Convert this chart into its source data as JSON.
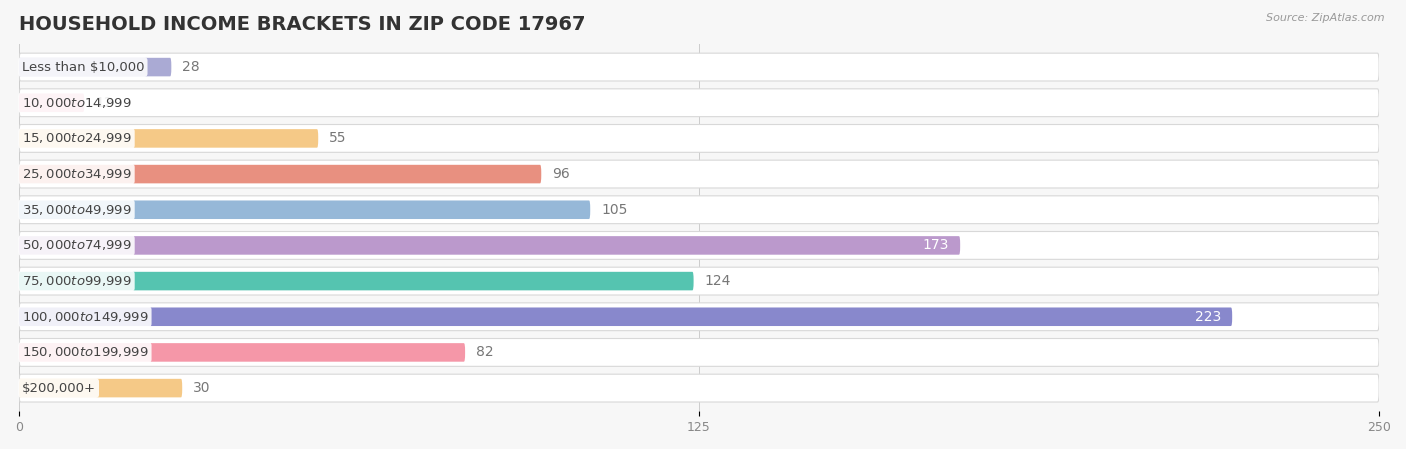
{
  "title": "HOUSEHOLD INCOME BRACKETS IN ZIP CODE 17967",
  "source": "Source: ZipAtlas.com",
  "categories": [
    "Less than $10,000",
    "$10,000 to $14,999",
    "$15,000 to $24,999",
    "$25,000 to $34,999",
    "$35,000 to $49,999",
    "$50,000 to $74,999",
    "$75,000 to $99,999",
    "$100,000 to $149,999",
    "$150,000 to $199,999",
    "$200,000+"
  ],
  "values": [
    28,
    12,
    55,
    96,
    105,
    173,
    124,
    223,
    82,
    30
  ],
  "colors": [
    "#aaaad4",
    "#f2a0b8",
    "#f5c987",
    "#e89080",
    "#96b8d8",
    "#bb99cc",
    "#55c4b0",
    "#8888cc",
    "#f597a8",
    "#f5c987"
  ],
  "row_bg_color": "#ebebeb",
  "row_bg_border": "#d8d8d8",
  "xlim": [
    0,
    250
  ],
  "xticks": [
    0,
    125,
    250
  ],
  "background_color": "#f7f7f7",
  "label_color_inside": "#ffffff",
  "label_color_outside": "#777777",
  "title_fontsize": 14,
  "label_fontsize": 10,
  "cat_fontsize": 9.5,
  "xtick_fontsize": 9,
  "inside_threshold": 155
}
